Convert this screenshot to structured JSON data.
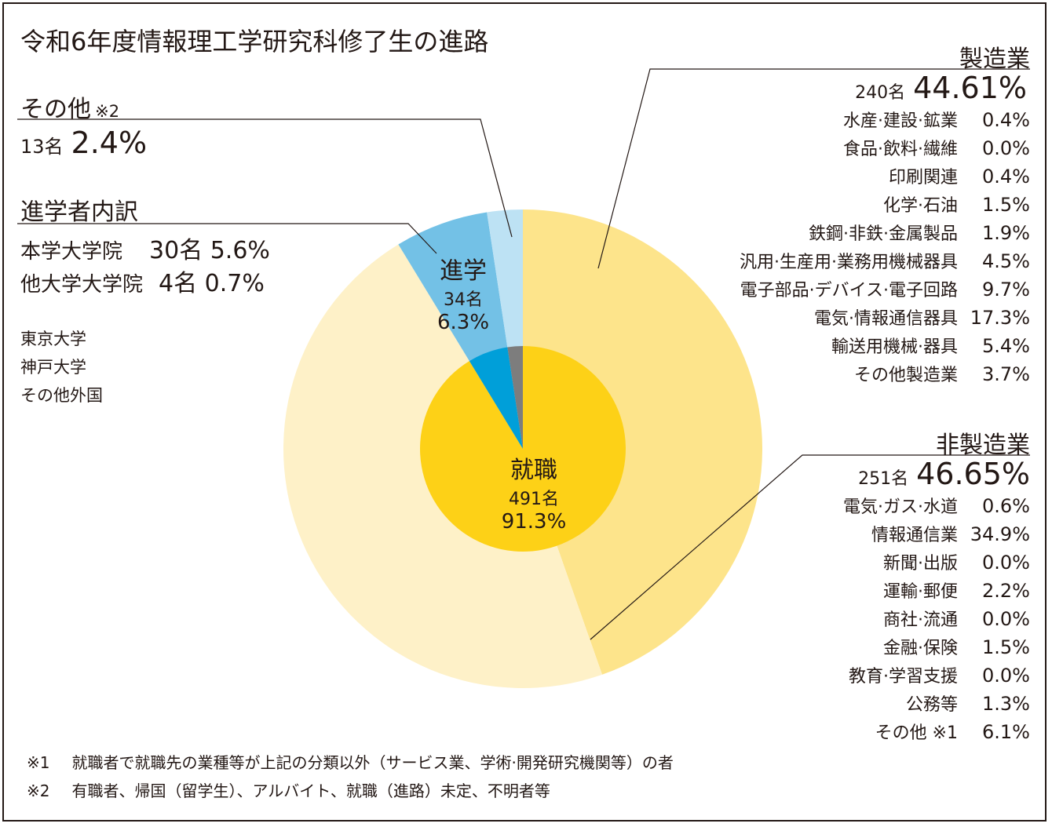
{
  "title": "令和6年度情報理工学研究科修了生の進路",
  "chart_data": {
    "type": "pie",
    "inner": [
      {
        "name": "就職",
        "count": "491名",
        "percent": 91.3,
        "color": "#fdd117"
      },
      {
        "name": "進学",
        "count": "34名",
        "percent": 6.3,
        "color": "#009fd9"
      },
      {
        "name": "その他",
        "count": "13名",
        "percent": 2.4,
        "color": "#7d7d7d"
      }
    ],
    "outer": [
      {
        "name": "製造業",
        "percent": 44.61,
        "color": "#fde48b"
      },
      {
        "name": "非製造業",
        "percent": 46.65,
        "color": "#fef1c8"
      },
      {
        "name": "進学",
        "percent": 6.3,
        "color": "#73c1e6"
      },
      {
        "name": "その他",
        "percent": 2.4,
        "color": "#bde2f4"
      }
    ]
  },
  "center_labels": {
    "employ_name": "就職",
    "employ_count": "491名",
    "employ_pct": "91.3%",
    "study_name": "進学",
    "study_count": "34名",
    "study_pct": "6.3%"
  },
  "other": {
    "label": "その他",
    "note_mark": "※2",
    "count": "13名",
    "pct": "2.4%"
  },
  "study_breakdown": {
    "heading": "進学者内訳",
    "rows": [
      {
        "name": "本学大学院",
        "value": "30名 5.6%"
      },
      {
        "name": "他大学大学院",
        "value": "4名 0.7%"
      }
    ],
    "schools": [
      "東京大学",
      "神戸大学",
      "その他外国"
    ]
  },
  "manufacturing": {
    "heading": "製造業",
    "count": "240名",
    "pct": "44.61%",
    "rows": [
      {
        "name": "水産·建設·鉱業",
        "pct": "0.4%"
      },
      {
        "name": "食品·飲料·繊維",
        "pct": "0.0%"
      },
      {
        "name": "印刷関連",
        "pct": "0.4%"
      },
      {
        "name": "化学·石油",
        "pct": "1.5%"
      },
      {
        "name": "鉄鋼·非鉄·金属製品",
        "pct": "1.9%"
      },
      {
        "name": "汎用·生産用·業務用機械器具",
        "pct": "4.5%"
      },
      {
        "name": "電子部品·デバイス·電子回路",
        "pct": "9.7%"
      },
      {
        "name": "電気·情報通信器具",
        "pct": "17.3%"
      },
      {
        "name": "輸送用機械·器具",
        "pct": "5.4%"
      },
      {
        "name": "その他製造業",
        "pct": "3.7%"
      }
    ]
  },
  "non_manufacturing": {
    "heading": "非製造業",
    "count": "251名",
    "pct": "46.65%",
    "rows": [
      {
        "name": "電気·ガス·水道",
        "pct": "0.6%"
      },
      {
        "name": "情報通信業",
        "pct": "34.9%"
      },
      {
        "name": "新聞·出版",
        "pct": "0.0%"
      },
      {
        "name": "運輸·郵便",
        "pct": "2.2%"
      },
      {
        "name": "商社·流通",
        "pct": "0.0%"
      },
      {
        "name": "金融·保険",
        "pct": "1.5%"
      },
      {
        "name": "教育·学習支援",
        "pct": "0.0%"
      },
      {
        "name": "公務等",
        "pct": "1.3%"
      },
      {
        "name": "その他 ※1",
        "pct": "6.1%"
      }
    ]
  },
  "footnotes": [
    {
      "mark": "※1",
      "text": "就職者で就職先の業種等が上記の分類以外（サービス業、学術·開発研究機関等）の者"
    },
    {
      "mark": "※2",
      "text": "有職者、帰国（留学生）、アルバイト、就職（進路）未定、不明者等"
    }
  ]
}
